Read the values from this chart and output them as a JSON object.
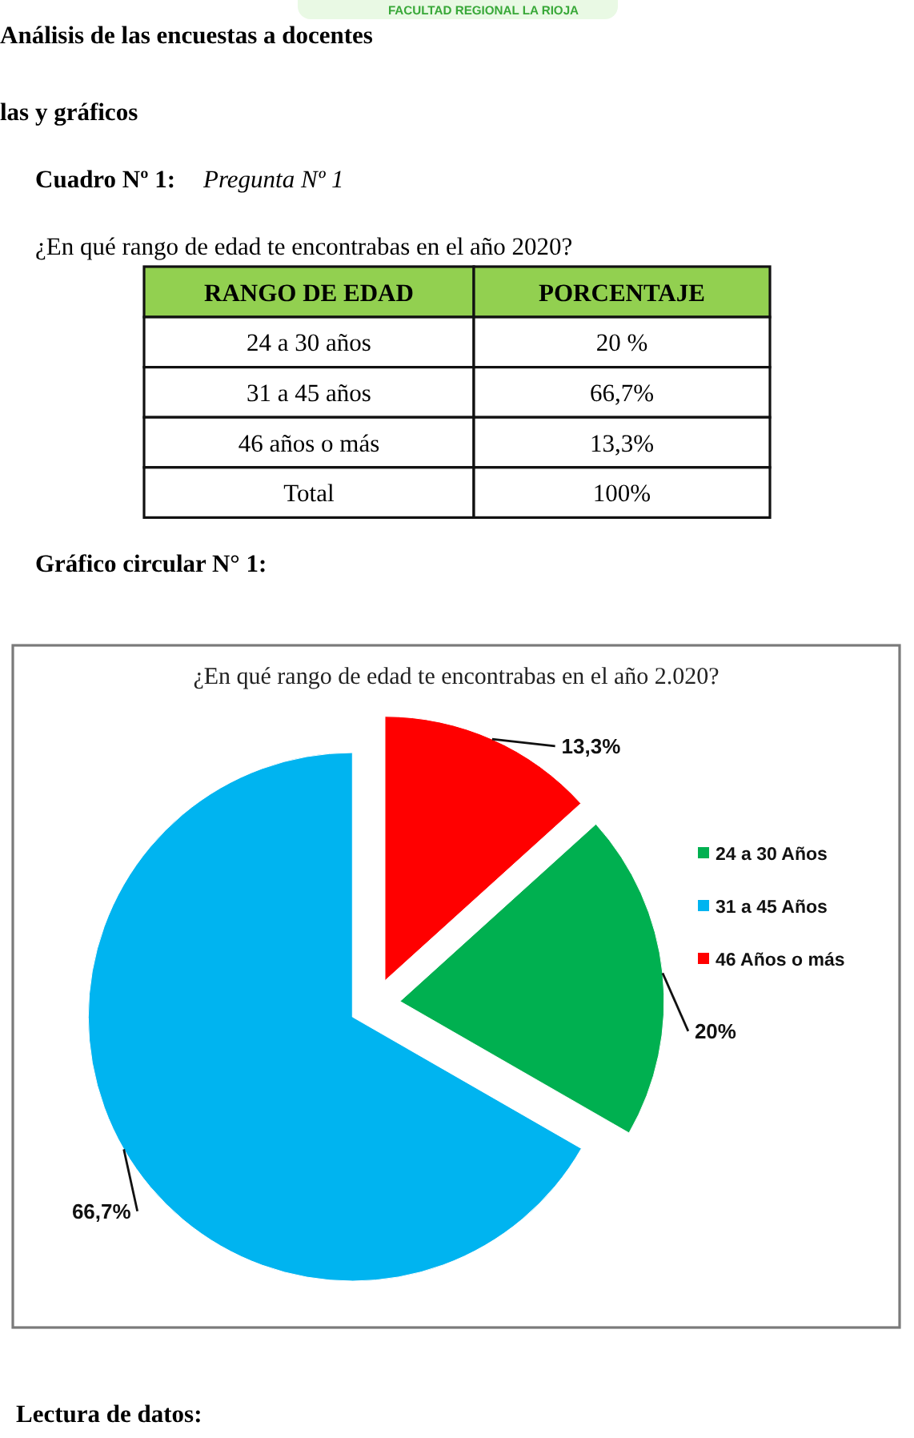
{
  "chart_data": [
    {
      "type": "other",
      "title": "Análisis de las encuestas a docentes",
      "subtitle": "las y gráficos",
      "annotations": [
        "FACULTAD REGIONAL LA RIOJA",
        "Cuadro Nº 1:",
        "Pregunta Nº 1",
        "¿En qué rango de edad te encontrabas en el año 2020?",
        "RANGO DE EDAD",
        "PORCENTAJE",
        "24 a 30 años",
        "20 %",
        "31 a 45 años",
        "66,7%",
        "46 años o más",
        "13,3%",
        "Total",
        "100%"
      ]
    },
    {
      "type": "pie",
      "title": "¿En qué rango de edad te encontrabas en el año 2.020?",
      "categories": [
        "24 a 30 Años",
        "31 a 45 Años",
        "46 Años o más"
      ],
      "values": [
        20,
        66.7,
        13.3
      ],
      "colors": [
        "#00b050",
        "#00b4f0",
        "#ff0000"
      ],
      "value_labels": [
        "20%",
        "66,7%",
        "13,3%"
      ],
      "legend": "right",
      "annotations": [
        "Gráfico circular N° 1:",
        "Lectura de datos:"
      ]
    }
  ]
}
